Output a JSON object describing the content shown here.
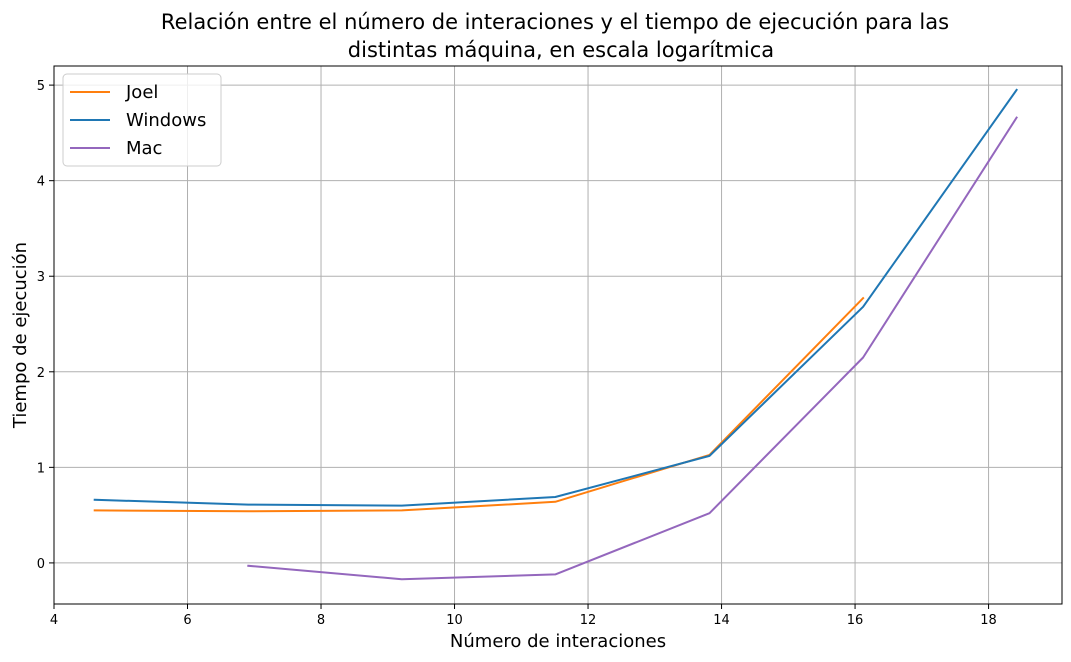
{
  "chart_data": {
    "type": "line",
    "title": [
      "Relación entre el número de interaciones y el tiempo de ejecución para las",
      "distintas máquina, en escala logarítmica"
    ],
    "xlabel": "Número de interaciones",
    "ylabel": "Tiempo de ejecución",
    "xlim": [
      4,
      19.1
    ],
    "ylim": [
      -0.43,
      5.2
    ],
    "xticks": [
      4,
      6,
      8,
      10,
      12,
      14,
      16,
      18
    ],
    "yticks": [
      0,
      1,
      2,
      3,
      4,
      5
    ],
    "grid": true,
    "legend_position": "top-left",
    "series": [
      {
        "name": "Joel",
        "color": "#ff7f0e",
        "x": [
          4.61,
          6.91,
          9.21,
          11.51,
          13.82,
          16.12
        ],
        "y": [
          0.55,
          0.54,
          0.55,
          0.64,
          1.13,
          2.77
        ]
      },
      {
        "name": "Windows",
        "color": "#1f77b4",
        "x": [
          4.61,
          6.91,
          9.21,
          11.51,
          13.82,
          16.12,
          18.42
        ],
        "y": [
          0.66,
          0.61,
          0.6,
          0.69,
          1.12,
          2.68,
          4.95
        ]
      },
      {
        "name": "Mac",
        "color": "#9467bd",
        "x": [
          6.91,
          9.21,
          11.51,
          13.82,
          16.12,
          18.42
        ],
        "y": [
          -0.03,
          -0.17,
          -0.12,
          0.52,
          2.15,
          4.66
        ]
      }
    ]
  }
}
